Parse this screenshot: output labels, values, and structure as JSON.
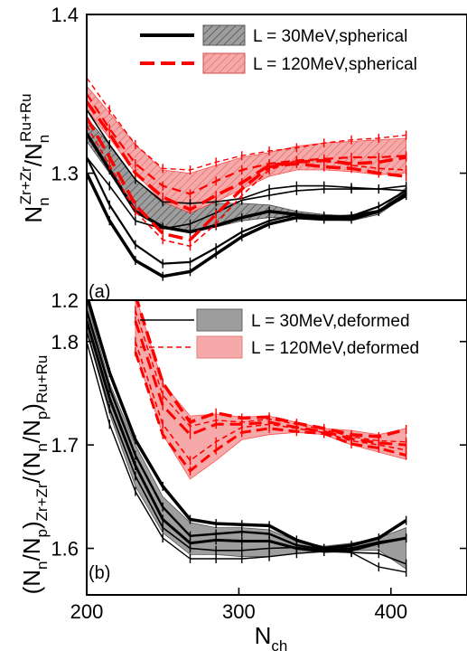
{
  "chart_data": [
    {
      "panel": "(a)",
      "type": "line",
      "ylabel": {
        "base": "N",
        "sub1": "n",
        "sup1": "Zr+Zr",
        "sep": "/N",
        "sub2": "n",
        "sup2": "Ru+Ru"
      },
      "xlim": [
        200,
        450
      ],
      "ylim": [
        1.22,
        1.4
      ],
      "yticks": [
        1.3,
        1.4
      ],
      "ytick_labels": [
        "1.3",
        "1.4"
      ],
      "legend_position": "top-right",
      "bands": [
        {
          "name": "L = 30MeV,spherical",
          "color": "#000000",
          "fill": "#9e9e9e",
          "x": [
            200,
            215,
            232,
            250,
            268,
            285,
            302,
            320,
            338,
            356,
            374,
            392,
            410
          ],
          "upper": [
            1.335,
            1.318,
            1.296,
            1.281,
            1.281,
            1.281,
            1.281,
            1.28,
            1.276,
            1.274,
            1.273,
            1.276,
            1.291
          ],
          "lower": [
            1.32,
            1.3,
            1.276,
            1.265,
            1.263,
            1.266,
            1.27,
            1.272,
            1.272,
            1.271,
            1.27,
            1.274,
            1.286
          ],
          "curves": [
            [
              1.31,
              1.292,
              1.27,
              1.265,
              1.268,
              1.275,
              1.283,
              1.286,
              1.289,
              1.29,
              1.29,
              1.29,
              1.289
            ],
            [
              1.325,
              1.302,
              1.276,
              1.266,
              1.263,
              1.267,
              1.272,
              1.276,
              1.274,
              1.272,
              1.273,
              1.276,
              1.287
            ],
            [
              1.34,
              1.318,
              1.296,
              1.282,
              1.281,
              1.282,
              1.284,
              1.29,
              1.292,
              1.292,
              1.291,
              1.29,
              1.292
            ],
            [
              1.3,
              1.27,
              1.245,
              1.235,
              1.238,
              1.249,
              1.26,
              1.268,
              1.272,
              1.271,
              1.271,
              1.276,
              1.286
            ],
            [
              1.31,
              1.28,
              1.255,
              1.243,
              1.244,
              1.253,
              1.263,
              1.27,
              1.274,
              1.273,
              1.273,
              1.279,
              1.289
            ]
          ]
        },
        {
          "name": "L = 120MeV,spherical",
          "color": "#ff0000",
          "fill": "#f5a9a9",
          "x": [
            200,
            215,
            232,
            250,
            268,
            285,
            302,
            320,
            338,
            356,
            374,
            392,
            410
          ],
          "upper": [
            1.355,
            1.338,
            1.318,
            1.302,
            1.3,
            1.305,
            1.31,
            1.313,
            1.317,
            1.319,
            1.32,
            1.321,
            1.322
          ],
          "lower": [
            1.34,
            1.322,
            1.3,
            1.282,
            1.275,
            1.282,
            1.29,
            1.298,
            1.302,
            1.302,
            1.301,
            1.299,
            1.3
          ],
          "curves": [
            [
              1.36,
              1.34,
              1.318,
              1.303,
              1.302,
              1.307,
              1.311,
              1.314,
              1.316,
              1.319,
              1.321,
              1.322,
              1.324
            ],
            [
              1.345,
              1.325,
              1.3,
              1.285,
              1.277,
              1.286,
              1.294,
              1.305,
              1.307,
              1.308,
              1.306,
              1.307,
              1.31
            ],
            [
              1.35,
              1.328,
              1.306,
              1.292,
              1.287,
              1.295,
              1.302,
              1.306,
              1.308,
              1.309,
              1.31,
              1.31,
              1.311
            ],
            [
              1.335,
              1.31,
              1.28,
              1.262,
              1.258,
              1.274,
              1.29,
              1.304,
              1.306,
              1.304,
              1.303,
              1.3,
              1.298
            ],
            [
              1.33,
              1.305,
              1.276,
              1.258,
              1.254,
              1.268,
              1.286,
              1.302,
              1.308,
              1.308,
              1.305,
              1.303,
              1.302
            ]
          ]
        }
      ]
    },
    {
      "panel": "(b)",
      "type": "line",
      "ylabel": {
        "p1": "(N",
        "s1": "n",
        "p2": "/N",
        "s2": "p",
        "p3": ")",
        "s3": "Zr+Zr",
        "p4": "/(N",
        "s4": "n",
        "p5": "/N",
        "s5": "p",
        "p6": ")",
        "s6": "Ru+Ru"
      },
      "xlabel": {
        "base": "N",
        "sub": "ch"
      },
      "xlim": [
        200,
        450
      ],
      "ylim": [
        1.555,
        1.84
      ],
      "xticks": [
        200,
        300,
        400
      ],
      "xtick_labels": [
        "200",
        "300",
        "400"
      ],
      "yticks": [
        1.6,
        1.7,
        1.8
      ],
      "ytick_labels": [
        "1.6",
        "1.7",
        "1.8"
      ],
      "extra_ytick_label": "1.2",
      "legend_position": "top-right",
      "bands": [
        {
          "name": "L = 30MeV,deformed",
          "color": "#000000",
          "fill": "#9e9e9e",
          "x": [
            200,
            215,
            232,
            250,
            268,
            285,
            302,
            320,
            338,
            356,
            374,
            392,
            410
          ],
          "upper": [
            1.84,
            1.76,
            1.7,
            1.65,
            1.625,
            1.62,
            1.62,
            1.618,
            1.607,
            1.602,
            1.605,
            1.61,
            1.62
          ],
          "lower": [
            1.81,
            1.73,
            1.66,
            1.615,
            1.594,
            1.594,
            1.592,
            1.592,
            1.595,
            1.597,
            1.598,
            1.598,
            1.58
          ],
          "curves": [
            [
              1.845,
              1.77,
              1.705,
              1.66,
              1.628,
              1.624,
              1.623,
              1.622,
              1.608,
              1.6,
              1.603,
              1.61,
              1.627
            ],
            [
              1.83,
              1.755,
              1.69,
              1.64,
              1.612,
              1.614,
              1.616,
              1.614,
              1.603,
              1.599,
              1.6,
              1.606,
              1.61
            ],
            [
              1.82,
              1.745,
              1.68,
              1.628,
              1.605,
              1.608,
              1.607,
              1.607,
              1.6,
              1.597,
              1.598,
              1.605,
              1.61
            ],
            [
              1.81,
              1.735,
              1.67,
              1.62,
              1.6,
              1.598,
              1.598,
              1.6,
              1.601,
              1.598,
              1.596,
              1.595,
              1.585
            ],
            [
              1.8,
              1.72,
              1.655,
              1.61,
              1.59,
              1.59,
              1.59,
              1.592,
              1.595,
              1.597,
              1.596,
              1.582,
              1.577
            ]
          ]
        },
        {
          "name": "L = 120MeV,deformed",
          "color": "#ff0000",
          "fill": "#f5a9a9",
          "x": [
            232,
            250,
            268,
            285,
            302,
            320,
            338,
            356,
            374,
            392,
            410
          ],
          "upper": [
            1.845,
            1.76,
            1.728,
            1.73,
            1.727,
            1.728,
            1.722,
            1.716,
            1.714,
            1.71,
            1.716
          ],
          "lower": [
            1.79,
            1.71,
            1.667,
            1.685,
            1.705,
            1.71,
            1.712,
            1.71,
            1.7,
            1.693,
            1.686
          ],
          "curves": [
            [
              1.845,
              1.76,
              1.722,
              1.731,
              1.726,
              1.727,
              1.721,
              1.716,
              1.71,
              1.708,
              1.715
            ],
            [
              1.83,
              1.748,
              1.718,
              1.724,
              1.722,
              1.725,
              1.72,
              1.715,
              1.708,
              1.704,
              1.703
            ],
            [
              1.82,
              1.738,
              1.71,
              1.72,
              1.72,
              1.722,
              1.717,
              1.713,
              1.706,
              1.702,
              1.7
            ],
            [
              1.8,
              1.72,
              1.685,
              1.703,
              1.717,
              1.72,
              1.716,
              1.712,
              1.704,
              1.7,
              1.695
            ],
            [
              1.79,
              1.71,
              1.675,
              1.695,
              1.712,
              1.716,
              1.713,
              1.711,
              1.701,
              1.697,
              1.69
            ]
          ]
        }
      ]
    }
  ]
}
